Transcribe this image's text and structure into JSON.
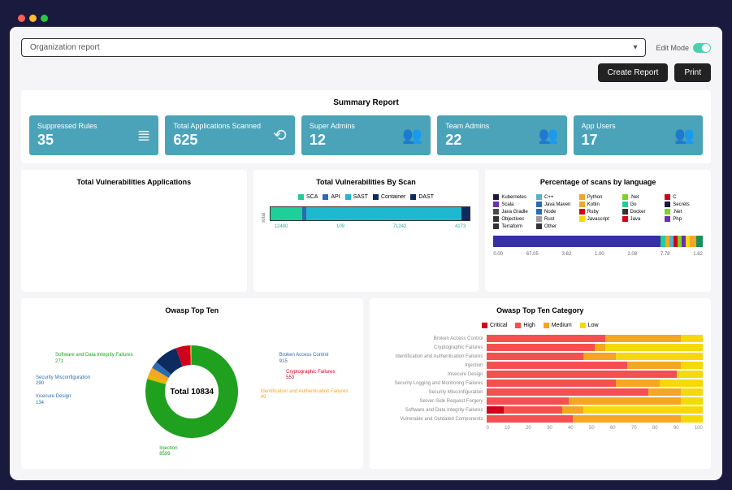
{
  "titlebar": {
    "dots": [
      "#ff5f57",
      "#febc2e",
      "#28c840"
    ]
  },
  "topbar": {
    "select_label": "Organization report",
    "edit_mode_label": "Edit Mode",
    "edit_mode_on": true
  },
  "actions": {
    "create_label": "Create Report",
    "print_label": "Print"
  },
  "summary": {
    "title": "Summary Report",
    "bg": "#4aa3b8",
    "stats": [
      {
        "label": "Suppressed Rules",
        "value": "35",
        "icon": "list-icon",
        "glyph": "≣"
      },
      {
        "label": "Total Applications Scanned",
        "value": "625",
        "icon": "scan-icon",
        "glyph": "⟲"
      },
      {
        "label": "Super Admins",
        "value": "12",
        "icon": "users-icon",
        "glyph": "👥"
      },
      {
        "label": "Team Admins",
        "value": "22",
        "icon": "users-icon",
        "glyph": "👥"
      },
      {
        "label": "App Users",
        "value": "17",
        "icon": "users-icon",
        "glyph": "👥"
      }
    ]
  },
  "vuln_apps": {
    "title": "Total Vulnerabilities Applications"
  },
  "vuln_scan": {
    "title": "Total Vulnerabilities By Scan",
    "axis_label": "Total",
    "legend": [
      {
        "label": "SCA",
        "color": "#1fcf9a"
      },
      {
        "label": "API",
        "color": "#2b6cb0"
      },
      {
        "label": "SAST",
        "color": "#1fb8d1"
      },
      {
        "label": "Container",
        "color": "#0d2b5e"
      },
      {
        "label": "DAST",
        "color": "#0d2b5e"
      }
    ],
    "segments": [
      {
        "color": "#1fcf9a",
        "pct": 16
      },
      {
        "color": "#2b6cb0",
        "pct": 2
      },
      {
        "color": "#1fb8d1",
        "pct": 78
      },
      {
        "color": "#0d2b5e",
        "pct": 4
      }
    ],
    "ticks": [
      "12480",
      "109",
      "71242",
      "4173"
    ]
  },
  "lang_scan": {
    "title": "Percentage of scans by language",
    "legend": [
      {
        "label": "Kubernetes",
        "color": "#1a1a3e"
      },
      {
        "label": "C++",
        "color": "#5ab0c4"
      },
      {
        "label": "Python",
        "color": "#f5a623"
      },
      {
        "label": ".Net",
        "color": "#7ed321"
      },
      {
        "label": "C",
        "color": "#d0021b"
      },
      {
        "label": "Scala",
        "color": "#6b2fb3"
      },
      {
        "label": "Java Maven",
        "color": "#2b6cb0"
      },
      {
        "label": "Kotlin",
        "color": "#f5a623"
      },
      {
        "label": "Go",
        "color": "#1fcf9a"
      },
      {
        "label": "Secrets",
        "color": "#1a1a3e"
      },
      {
        "label": "Java Gradle",
        "color": "#4a4a4a"
      },
      {
        "label": "Node",
        "color": "#2b6cb0"
      },
      {
        "label": "Ruby",
        "color": "#d0021b"
      },
      {
        "label": "Docker",
        "color": "#333"
      },
      {
        "label": ".Net",
        "color": "#7ed321"
      },
      {
        "label": "Objectivec",
        "color": "#333"
      },
      {
        "label": "Rust",
        "color": "#9b9b9b"
      },
      {
        "label": "Javascript",
        "color": "#f5d90a"
      },
      {
        "label": "Java",
        "color": "#d0021b"
      },
      {
        "label": "Php",
        "color": "#6b2fb3"
      },
      {
        "label": "Terraform",
        "color": "#333"
      },
      {
        "label": "Other",
        "color": "#333"
      }
    ],
    "segments": [
      {
        "color": "#3530a8",
        "pct": 66
      },
      {
        "color": "#3530a8",
        "pct": 14
      },
      {
        "color": "#1fcf9a",
        "pct": 2
      },
      {
        "color": "#f5a623",
        "pct": 2
      },
      {
        "color": "#5ab0c4",
        "pct": 2
      },
      {
        "color": "#d0021b",
        "pct": 2
      },
      {
        "color": "#7ed321",
        "pct": 2
      },
      {
        "color": "#6b2fb3",
        "pct": 2
      },
      {
        "color": "#f5d90a",
        "pct": 2
      },
      {
        "color": "#f5a623",
        "pct": 3
      },
      {
        "color": "#1a8f5e",
        "pct": 3
      }
    ],
    "ticks": [
      "0.00",
      "67.05",
      "3.82",
      "1.00",
      "2.08",
      "7.78",
      "1.82"
    ]
  },
  "owasp_donut": {
    "title": "Owasp Top Ten",
    "total_label": "Total 10834",
    "slices": [
      {
        "label": "Injection",
        "value": 8599,
        "color": "#1fa01f",
        "deg": 286
      },
      {
        "label": "Insecure Design",
        "value": 134,
        "color": "#e6b800",
        "deg": 5,
        "lcolor": "#2b6cb0"
      },
      {
        "label": "Security Misconfiguration",
        "value": 290,
        "color": "#f5a623",
        "deg": 10,
        "lcolor": "#2b6cb0"
      },
      {
        "label": "Software and Data Integrity Failures",
        "value": 271,
        "color": "#2b6cb0",
        "deg": 9,
        "lcolor": "#1fa01f"
      },
      {
        "label": "Broken Access Control",
        "value": 915,
        "color": "#0d2b5e",
        "deg": 30,
        "lcolor": "#2b6cb0"
      },
      {
        "label": "Cryptographic Failures",
        "value": 553,
        "color": "#d0021b",
        "deg": 18,
        "lcolor": "#d0021b"
      },
      {
        "label": "Identification and Authentication Failures",
        "value": 49,
        "color": "#f59023",
        "deg": 2,
        "lcolor": "#f5a623"
      }
    ]
  },
  "owasp_cat": {
    "title": "Owasp Top Ten Category",
    "legend": [
      {
        "label": "Critical",
        "color": "#d0021b"
      },
      {
        "label": "High",
        "color": "#f55050"
      },
      {
        "label": "Medium",
        "color": "#f5a623"
      },
      {
        "label": "Low",
        "color": "#f5d90a"
      }
    ],
    "rows": [
      {
        "label": "Broken Access Control",
        "segs": [
          {
            "c": "#f55050",
            "p": 55
          },
          {
            "c": "#f5a623",
            "p": 35
          },
          {
            "c": "#f5d90a",
            "p": 10
          }
        ]
      },
      {
        "label": "Cryptographic Failures",
        "segs": [
          {
            "c": "#f55050",
            "p": 50
          },
          {
            "c": "#f5a623",
            "p": 5
          },
          {
            "c": "#f5d90a",
            "p": 45
          }
        ]
      },
      {
        "label": "Identification and Authentication Failures",
        "segs": [
          {
            "c": "#f55050",
            "p": 45
          },
          {
            "c": "#f5a623",
            "p": 15
          },
          {
            "c": "#f5d90a",
            "p": 40
          }
        ]
      },
      {
        "label": "Injection",
        "segs": [
          {
            "c": "#f55050",
            "p": 65
          },
          {
            "c": "#f5a623",
            "p": 25
          },
          {
            "c": "#f5d90a",
            "p": 10
          }
        ]
      },
      {
        "label": "Insecure Design",
        "segs": [
          {
            "c": "#f55050",
            "p": 88
          },
          {
            "c": "#f5d90a",
            "p": 12
          }
        ]
      },
      {
        "label": "Security Logging and Monitoring Failures",
        "segs": [
          {
            "c": "#f55050",
            "p": 60
          },
          {
            "c": "#f5a623",
            "p": 20
          },
          {
            "c": "#f5d90a",
            "p": 20
          }
        ]
      },
      {
        "label": "Security Misconfiguration",
        "segs": [
          {
            "c": "#f55050",
            "p": 75
          },
          {
            "c": "#f5a623",
            "p": 15
          },
          {
            "c": "#f5d90a",
            "p": 10
          }
        ]
      },
      {
        "label": "Server-Side Request Forgery",
        "segs": [
          {
            "c": "#f55050",
            "p": 38
          },
          {
            "c": "#f5a623",
            "p": 52
          },
          {
            "c": "#f5d90a",
            "p": 10
          }
        ]
      },
      {
        "label": "Software and Data Integrity Failures",
        "segs": [
          {
            "c": "#d0021b",
            "p": 8
          },
          {
            "c": "#f55050",
            "p": 27
          },
          {
            "c": "#f5a623",
            "p": 10
          },
          {
            "c": "#f5d90a",
            "p": 55
          }
        ]
      },
      {
        "label": "Vulnerable and Outdated Components",
        "segs": [
          {
            "c": "#f55050",
            "p": 40
          },
          {
            "c": "#f5a623",
            "p": 50
          },
          {
            "c": "#f5d90a",
            "p": 10
          }
        ]
      }
    ],
    "ticks": [
      "0",
      "10",
      "20",
      "30",
      "40",
      "50",
      "60",
      "70",
      "80",
      "90",
      "100"
    ]
  }
}
